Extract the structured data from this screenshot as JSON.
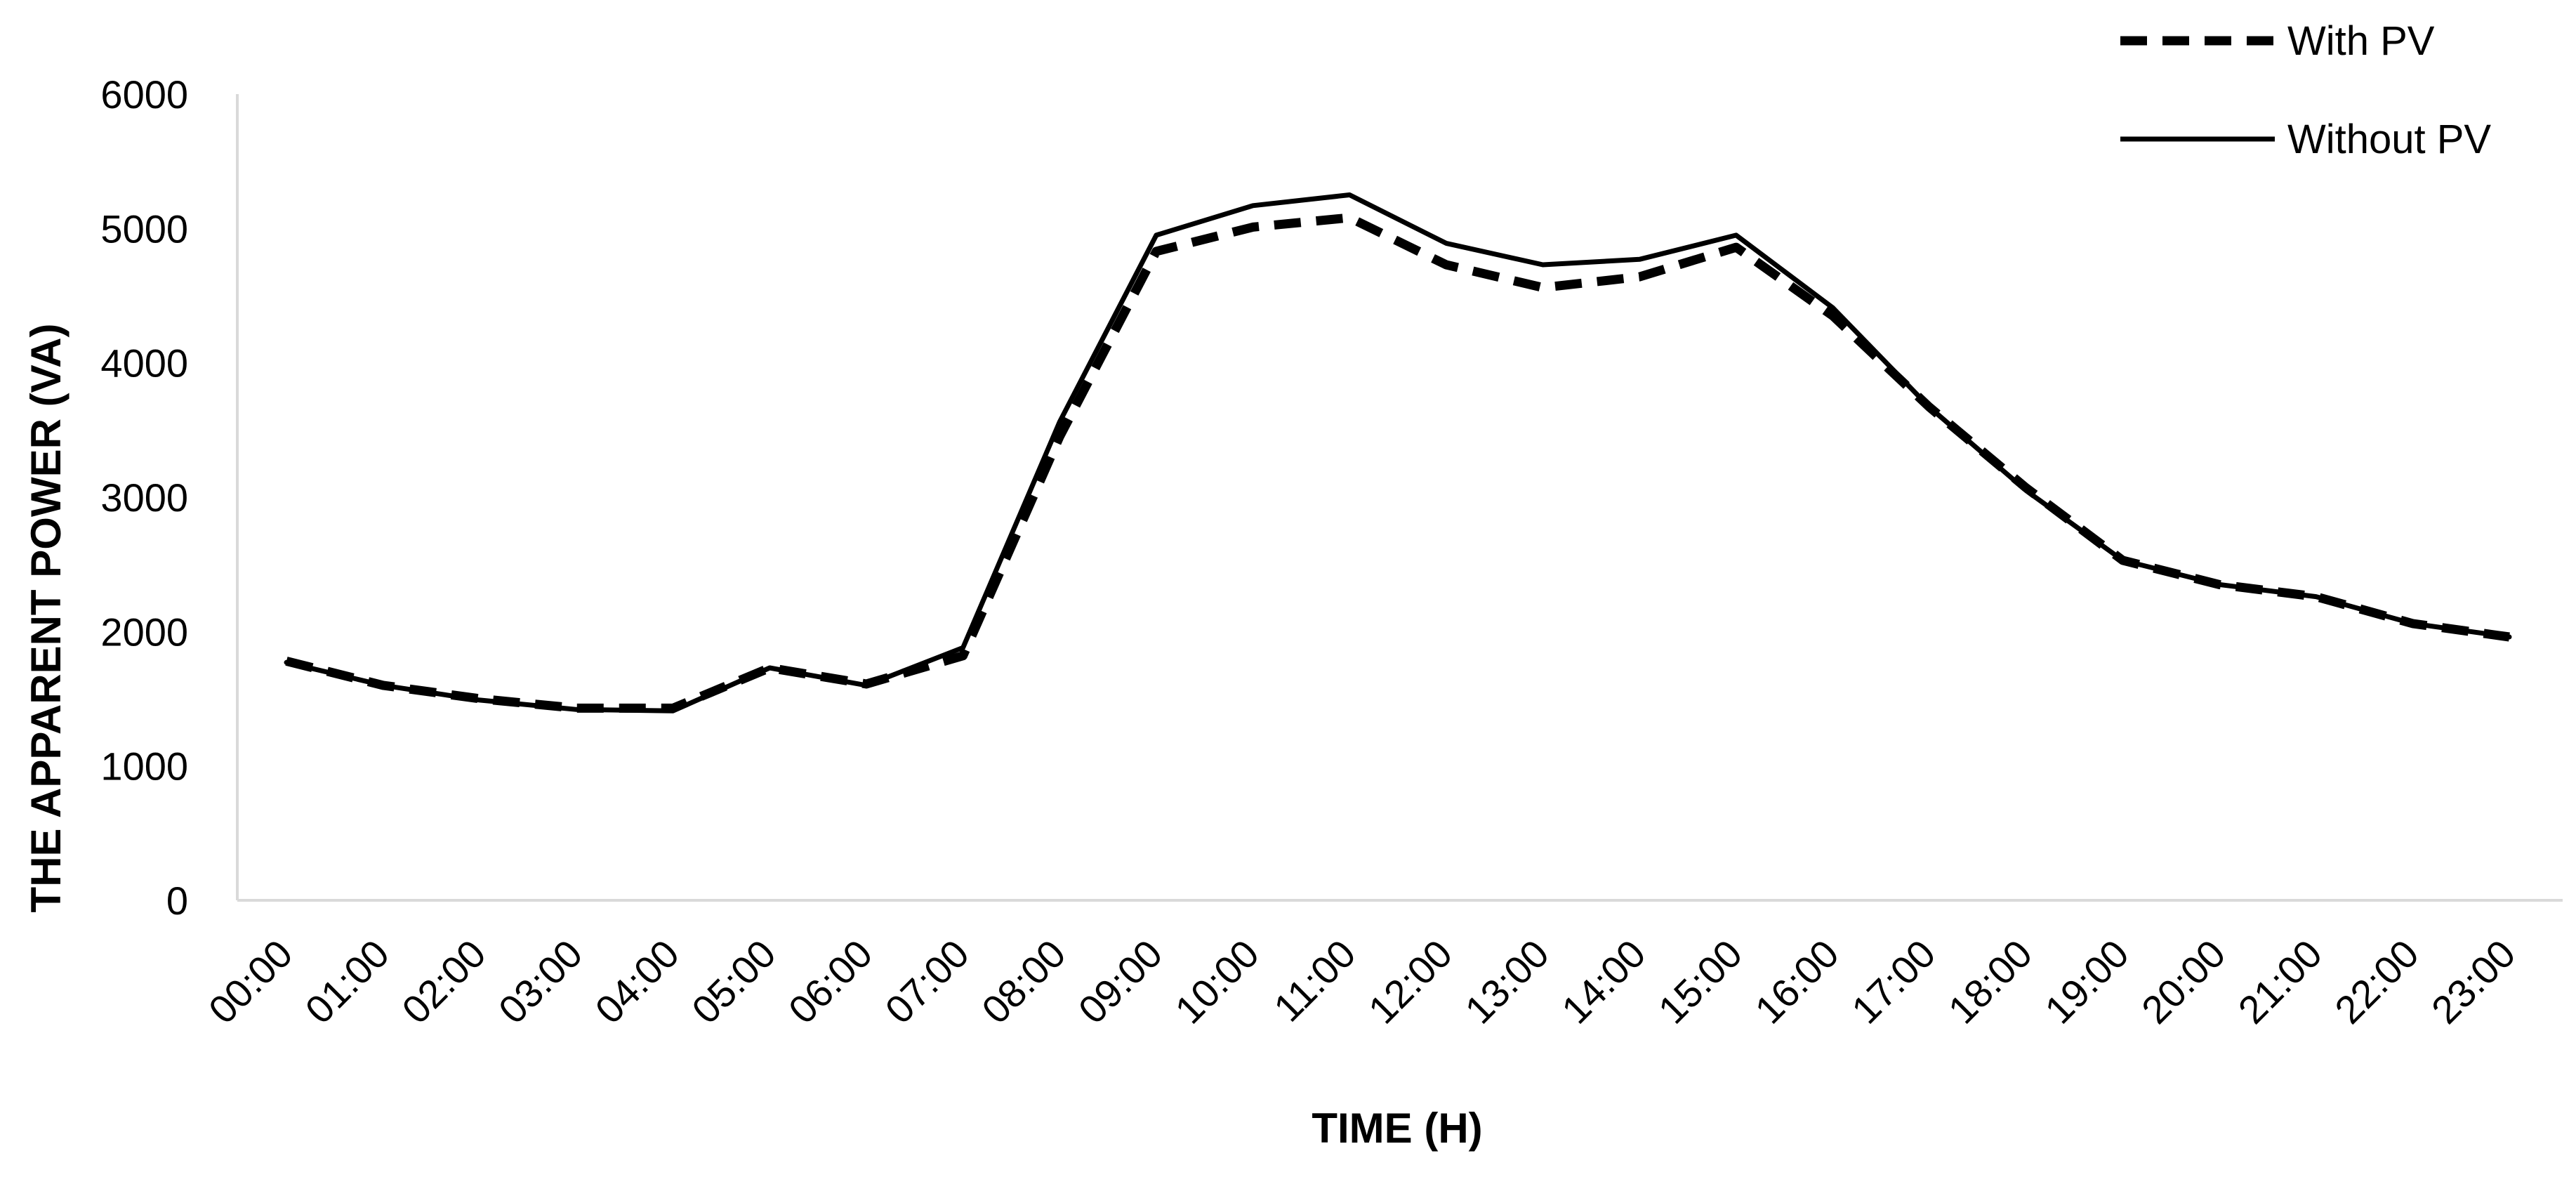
{
  "chart_data": {
    "type": "line",
    "title": "",
    "xlabel": "TIME (H)",
    "ylabel": "THE APPARENT POWER  (VA)",
    "ylim": [
      0,
      6000
    ],
    "yticks": [
      0,
      1000,
      2000,
      3000,
      4000,
      5000,
      6000
    ],
    "grid": false,
    "legend_position": "top-right",
    "categories": [
      "00:00",
      "01:00",
      "02:00",
      "03:00",
      "04:00",
      "05:00",
      "06:00",
      "07:00",
      "08:00",
      "09:00",
      "10:00",
      "11:00",
      "12:00",
      "13:00",
      "14:00",
      "15:00",
      "16:00",
      "17:00",
      "18:00",
      "19:00",
      "20:00",
      "21:00",
      "22:00",
      "23:00"
    ],
    "series": [
      {
        "name": "With PV",
        "style": "dashed",
        "color": "#000000",
        "values": [
          1780,
          1600,
          1500,
          1430,
          1430,
          1730,
          1610,
          1820,
          3450,
          4830,
          5010,
          5080,
          4730,
          4560,
          4640,
          4860,
          4350,
          3670,
          3070,
          2530,
          2350,
          2260,
          2060,
          1960
        ]
      },
      {
        "name": "Without PV",
        "style": "solid",
        "color": "#000000",
        "values": [
          1770,
          1600,
          1490,
          1420,
          1410,
          1730,
          1600,
          1880,
          3560,
          4950,
          5170,
          5250,
          4890,
          4730,
          4770,
          4950,
          4410,
          3670,
          3050,
          2530,
          2350,
          2260,
          2060,
          1960
        ]
      }
    ]
  }
}
